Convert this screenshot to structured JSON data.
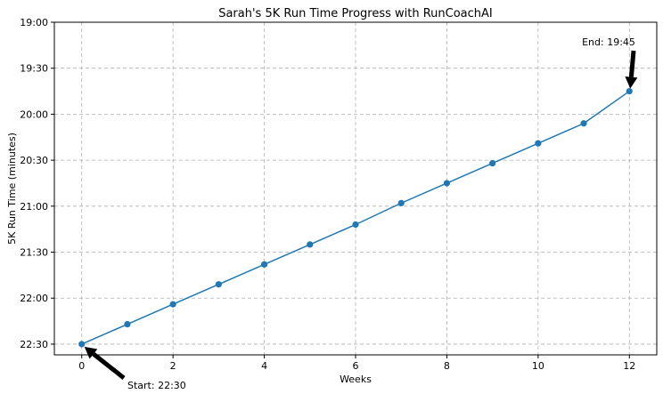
{
  "chart_data": {
    "type": "line",
    "title": "Sarah's 5K Run Time Progress with RunCoachAI",
    "xlabel": "Weeks",
    "ylabel": "5K Run Time (minutes)",
    "x": [
      0,
      1,
      2,
      3,
      4,
      5,
      6,
      7,
      8,
      9,
      10,
      11,
      12
    ],
    "series": [
      {
        "values": [
          "22:30",
          "22:17",
          "22:04",
          "21:51",
          "21:38",
          "21:25",
          "21:12",
          "20:58",
          "20:45",
          "20:32",
          "20:19",
          "20:06",
          "19:45"
        ],
        "color": "#1f77b4"
      }
    ],
    "xlim": [
      -0.6,
      12.6
    ],
    "ylim": [
      "22:37",
      "19:00"
    ],
    "y_inverted": true,
    "x_ticks": [
      "0",
      "2",
      "4",
      "6",
      "8",
      "10",
      "12"
    ],
    "y_ticks": [
      "19:00",
      "19:30",
      "20:00",
      "20:30",
      "21:00",
      "21:30",
      "22:00",
      "22:30"
    ],
    "grid": true,
    "annotations": [
      {
        "text": "Start: 22:30",
        "point": [
          0,
          "22:30"
        ]
      },
      {
        "text": "End: 19:45",
        "point": [
          12,
          "19:45"
        ]
      }
    ]
  }
}
